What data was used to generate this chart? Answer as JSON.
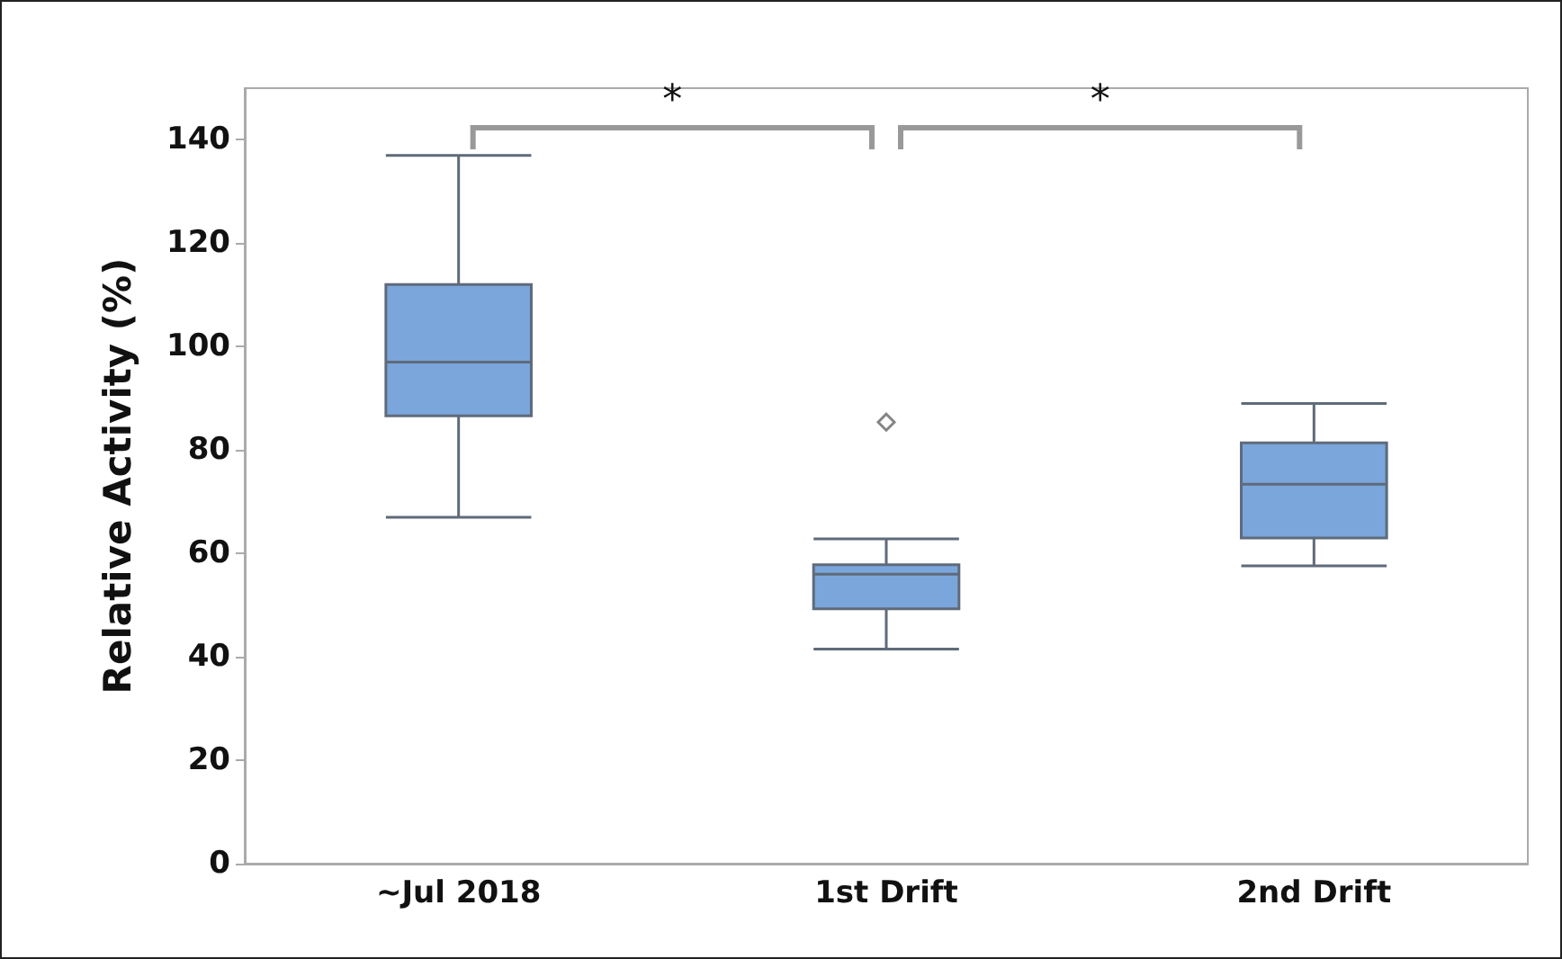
{
  "chart_data": {
    "type": "box",
    "ylabel": "Relative Activity (%)",
    "categories": [
      "~Jul 2018",
      "1st Drift",
      "2nd Drift"
    ],
    "boxes": [
      {
        "low": 67,
        "q1": 86.6,
        "median": 97,
        "q3": 112,
        "high": 137
      },
      {
        "low": 41.5,
        "q1": 49.3,
        "median": 56,
        "q3": 57.8,
        "high": 62.8,
        "outliers": [
          85.4
        ]
      },
      {
        "low": 57.6,
        "q1": 63,
        "median": 73.4,
        "q3": 81.4,
        "high": 89
      }
    ],
    "color": "#7aa6dc",
    "ylim": [
      0,
      150
    ],
    "yticks": [
      0,
      20,
      40,
      60,
      80,
      100,
      120,
      140
    ],
    "grid": false,
    "annotations": [
      "*",
      "*"
    ]
  }
}
